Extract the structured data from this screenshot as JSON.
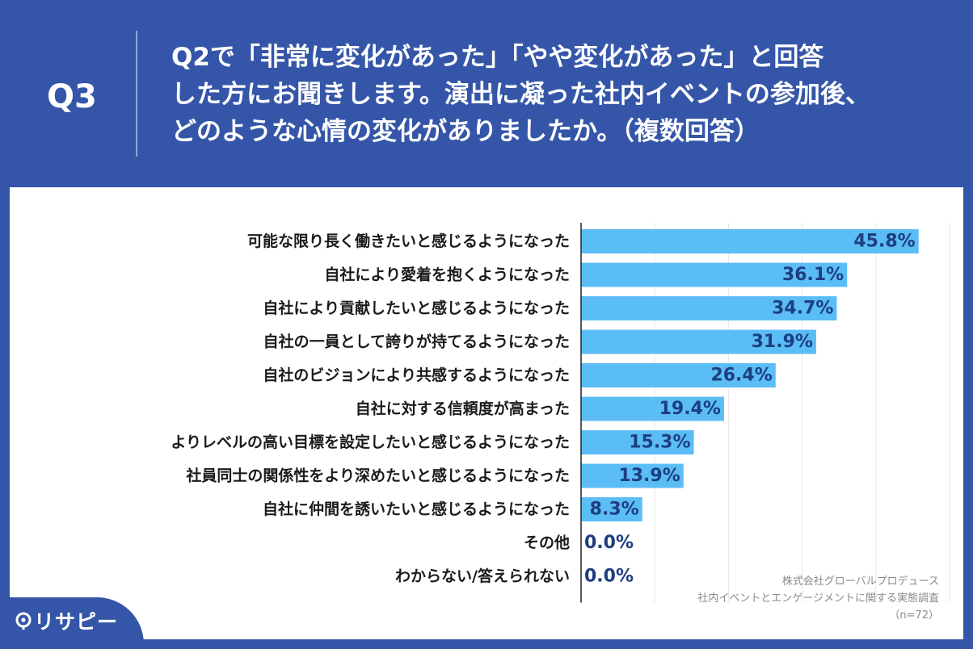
{
  "header": {
    "qnum": "Q3",
    "question_lines": [
      "Q2で「非常に変化があった」「やや変化があった」と回答",
      "した方にお聞きします。演出に凝った社内イベントの参加後、",
      "どのような心情の変化がありましたか。（複数回答）"
    ]
  },
  "chart_data": {
    "type": "bar",
    "orientation": "horizontal",
    "categories": [
      "可能な限り長く働きたいと感じるようになった",
      "自社により愛着を抱くようになった",
      "自社により貢献したいと感じるようになった",
      "自社の一員として誇りが持てるようになった",
      "自社のビジョンにより共感するようになった",
      "自社に対する信頼度が高まった",
      "よりレベルの高い目標を設定したいと感じるようになった",
      "社員同士の関係性をより深めたいと感じるようになった",
      "自社に仲間を誘いたいと感じるようになった",
      "その他",
      "わからない/答えられない"
    ],
    "values": [
      45.8,
      36.1,
      34.7,
      31.9,
      26.4,
      19.4,
      15.3,
      13.9,
      8.3,
      0.0,
      0.0
    ],
    "value_labels": [
      "45.8%",
      "36.1%",
      "34.7%",
      "31.9%",
      "26.4%",
      "19.4%",
      "15.3%",
      "13.9%",
      "8.3%",
      "0.0%",
      "0.0%"
    ],
    "xlim": [
      0,
      50
    ],
    "grid": true,
    "bar_color": "#5bbdf5",
    "value_label_color": "#1d3e80"
  },
  "credit": {
    "company": "株式会社グローバルプロデュース",
    "survey": "社内イベントとエンゲージメントに関する実態調査",
    "n": "（n=72）"
  },
  "logo": {
    "text": "リサピー",
    "icon": "map-pin-icon"
  },
  "colors": {
    "brand_blue": "#3556a8",
    "panel_bg": "#ffffff"
  }
}
